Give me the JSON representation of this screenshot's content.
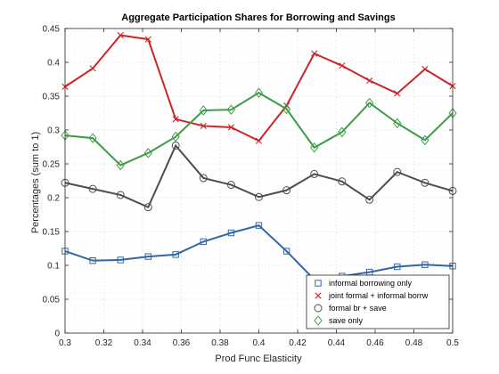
{
  "chart_data": {
    "type": "line",
    "title": "Aggregate Participation Shares for Borrowing and Savings",
    "xlabel": "Prod Func Elasticity",
    "ylabel": "Percentages (sum to 1)",
    "xlim": [
      0.3,
      0.5
    ],
    "ylim": [
      0,
      0.45
    ],
    "xticks": [
      "0.3",
      "0.32",
      "0.34",
      "0.36",
      "0.38",
      "0.4",
      "0.42",
      "0.44",
      "0.46",
      "0.48",
      "0.5"
    ],
    "yticks": [
      "0",
      "0.05",
      "0.1",
      "0.15",
      "0.2",
      "0.25",
      "0.3",
      "0.35",
      "0.4",
      "0.45"
    ],
    "grid": true,
    "legend_location": "bottom-right",
    "x": [
      0.3,
      0.3143,
      0.3286,
      0.3429,
      0.3571,
      0.3714,
      0.3857,
      0.4,
      0.4143,
      0.4286,
      0.4429,
      0.4571,
      0.4714,
      0.4857,
      0.5
    ],
    "series": [
      {
        "name": "informal borrowing only",
        "color": "#3465a4",
        "marker": "square",
        "values": [
          0.121,
          0.107,
          0.108,
          0.113,
          0.116,
          0.135,
          0.148,
          0.159,
          0.121,
          0.079,
          0.084,
          0.09,
          0.098,
          0.101,
          0.099
        ]
      },
      {
        "name": "joint formal + informal borrw",
        "color": "#cc2529",
        "marker": "x",
        "values": [
          0.364,
          0.391,
          0.44,
          0.434,
          0.316,
          0.306,
          0.304,
          0.284,
          0.336,
          0.413,
          0.395,
          0.373,
          0.354,
          0.39,
          0.365
        ]
      },
      {
        "name": "formal br + save",
        "color": "#4d4d4d",
        "marker": "circle",
        "values": [
          0.222,
          0.213,
          0.204,
          0.186,
          0.277,
          0.229,
          0.219,
          0.201,
          0.211,
          0.235,
          0.224,
          0.197,
          0.238,
          0.222,
          0.21
        ]
      },
      {
        "name": "save only",
        "color": "#3d9c48",
        "marker": "diamond",
        "values": [
          0.292,
          0.288,
          0.248,
          0.266,
          0.29,
          0.329,
          0.33,
          0.355,
          0.331,
          0.274,
          0.297,
          0.34,
          0.31,
          0.285,
          0.325
        ]
      }
    ]
  }
}
